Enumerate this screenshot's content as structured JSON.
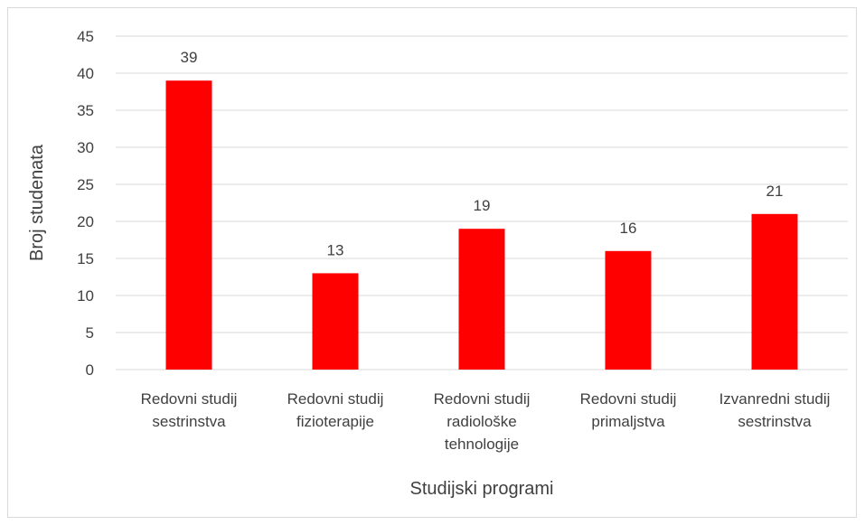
{
  "chart_data": {
    "type": "bar",
    "categories": [
      [
        "Redovni studij",
        "sestrinstva"
      ],
      [
        "Redovni studij",
        "fizioterapije"
      ],
      [
        "Redovni studij",
        "radiološke",
        "tehnologije"
      ],
      [
        "Redovni studij",
        "primaljstva"
      ],
      [
        "Izvanredni studij",
        "sestrinstva"
      ]
    ],
    "values": [
      39,
      13,
      19,
      16,
      21
    ],
    "xlabel": "Studijski programi",
    "ylabel": "Broj studenata",
    "ylim": [
      0,
      45
    ],
    "yticks": [
      0,
      5,
      10,
      15,
      20,
      25,
      30,
      35,
      40,
      45
    ],
    "grid": true,
    "data_labels": true,
    "bar_color": "#ff0000"
  }
}
